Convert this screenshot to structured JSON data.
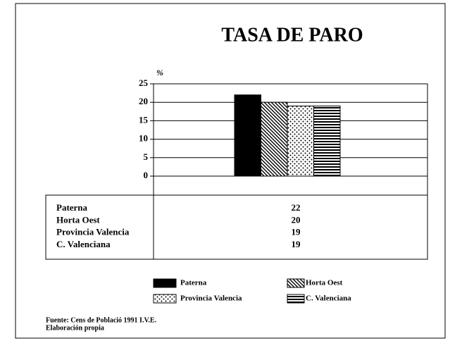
{
  "chart_data": {
    "type": "bar",
    "title": "TASA DE PARO",
    "y_label": "%",
    "ylim": [
      0,
      25
    ],
    "yticks": [
      0,
      5,
      10,
      15,
      20,
      25
    ],
    "grid": true,
    "series": [
      {
        "name": "Paterna",
        "color": "#000000",
        "pattern": "solid",
        "values": [
          22
        ]
      },
      {
        "name": "Horta Oest",
        "color": "#000000",
        "pattern": "diagonal",
        "values": [
          20
        ]
      },
      {
        "name": "Provincia Valencia",
        "color": "#000000",
        "pattern": "dots",
        "values": [
          19
        ]
      },
      {
        "name": "C. Valenciana",
        "color": "#000000",
        "pattern": "horizontal",
        "values": [
          19
        ]
      }
    ],
    "source": [
      "Fuente: Cens de Població 1991 I.V.E.",
      "Elaboración propia"
    ]
  }
}
